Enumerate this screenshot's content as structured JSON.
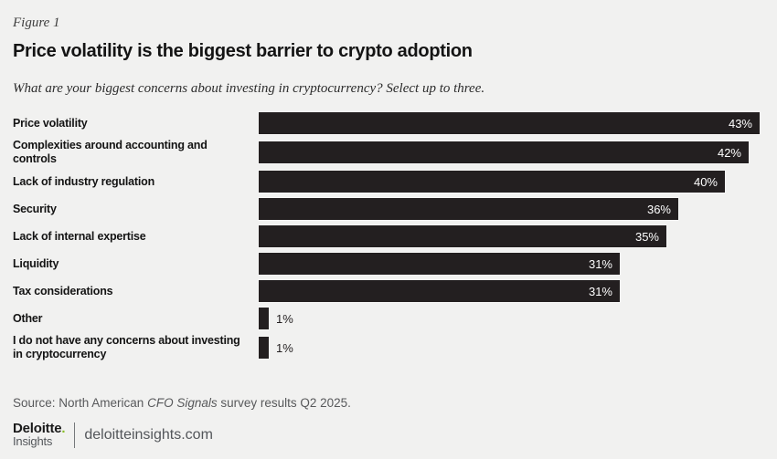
{
  "figure_label": "Figure 1",
  "title": "Price volatility is the biggest barrier to crypto adoption",
  "subtitle": "What are your biggest concerns about investing in cryptocurrency? Select up to three.",
  "chart_data": {
    "type": "bar",
    "orientation": "horizontal",
    "categories": [
      "Price volatility",
      "Complexities around accounting and controls",
      "Lack of industry regulation",
      "Security",
      "Lack of internal expertise",
      "Liquidity",
      "Tax considerations",
      "Other",
      "I do not have any concerns about investing in cryptocurrency"
    ],
    "values": [
      43,
      42,
      40,
      36,
      35,
      31,
      31,
      1,
      1
    ],
    "value_suffix": "%",
    "xlim": [
      0,
      43.3
    ],
    "grid": false,
    "legend": false,
    "bar_color": "#231f20",
    "value_label_inside_color": "#ffffff",
    "value_label_outside_color": "#231f20",
    "value_label_threshold_pct": 3
  },
  "source": {
    "prefix": "Source: North American ",
    "italic": "CFO Signals",
    "suffix": " survey results Q2 2025."
  },
  "footer": {
    "brand": "Deloitte",
    "brand_dot": ".",
    "brand_sub": "Insights",
    "site": "deloitteinsights.com"
  },
  "colors": {
    "background": "#f1f1f0",
    "bar": "#231f20",
    "accent_green": "#86bc25",
    "text_dark": "#141414",
    "text_gray": "#58595b"
  }
}
